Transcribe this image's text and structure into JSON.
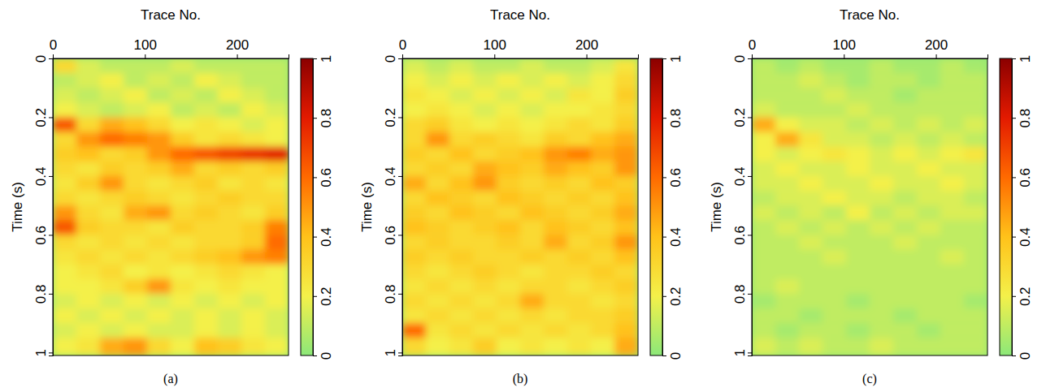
{
  "chart_data": [
    {
      "type": "heatmap",
      "title": "(a)",
      "x_label": "Trace No.",
      "y_label": "Time (s)",
      "x": [
        12.8,
        38.4,
        64,
        89.6,
        115.2,
        140.8,
        166.4,
        192,
        217.6,
        243.2
      ],
      "y": [
        0.025,
        0.075,
        0.125,
        0.175,
        0.225,
        0.275,
        0.325,
        0.375,
        0.425,
        0.475,
        0.525,
        0.575,
        0.625,
        0.675,
        0.725,
        0.775,
        0.825,
        0.875,
        0.925,
        0.975
      ],
      "z": [
        [
          0.3,
          0.15,
          0.1,
          0.1,
          0.1,
          0.15,
          0.1,
          0.1,
          0.1,
          0.1
        ],
        [
          0.1,
          0.15,
          0.2,
          0.1,
          0.15,
          0.1,
          0.2,
          0.15,
          0.1,
          0.1
        ],
        [
          0.15,
          0.1,
          0.15,
          0.2,
          0.1,
          0.15,
          0.1,
          0.2,
          0.15,
          0.1
        ],
        [
          0.2,
          0.15,
          0.1,
          0.15,
          0.2,
          0.1,
          0.15,
          0.1,
          0.2,
          0.15
        ],
        [
          0.65,
          0.3,
          0.45,
          0.4,
          0.3,
          0.2,
          0.25,
          0.2,
          0.15,
          0.2
        ],
        [
          0.3,
          0.5,
          0.6,
          0.55,
          0.5,
          0.35,
          0.25,
          0.3,
          0.25,
          0.2
        ],
        [
          0.35,
          0.4,
          0.3,
          0.35,
          0.5,
          0.6,
          0.65,
          0.7,
          0.75,
          0.8
        ],
        [
          0.3,
          0.25,
          0.35,
          0.3,
          0.35,
          0.45,
          0.3,
          0.35,
          0.3,
          0.35
        ],
        [
          0.25,
          0.35,
          0.5,
          0.3,
          0.25,
          0.3,
          0.35,
          0.25,
          0.3,
          0.25
        ],
        [
          0.3,
          0.25,
          0.3,
          0.35,
          0.3,
          0.25,
          0.3,
          0.35,
          0.3,
          0.3
        ],
        [
          0.5,
          0.3,
          0.25,
          0.45,
          0.5,
          0.3,
          0.35,
          0.3,
          0.25,
          0.35
        ],
        [
          0.65,
          0.35,
          0.3,
          0.3,
          0.25,
          0.35,
          0.3,
          0.3,
          0.35,
          0.55
        ],
        [
          0.3,
          0.25,
          0.3,
          0.25,
          0.3,
          0.25,
          0.3,
          0.3,
          0.35,
          0.6
        ],
        [
          0.25,
          0.3,
          0.25,
          0.3,
          0.25,
          0.3,
          0.35,
          0.4,
          0.5,
          0.55
        ],
        [
          0.2,
          0.25,
          0.3,
          0.2,
          0.25,
          0.2,
          0.25,
          0.3,
          0.25,
          0.2
        ],
        [
          0.2,
          0.2,
          0.25,
          0.35,
          0.5,
          0.25,
          0.2,
          0.25,
          0.2,
          0.2
        ],
        [
          0.15,
          0.2,
          0.15,
          0.2,
          0.15,
          0.2,
          0.15,
          0.2,
          0.15,
          0.2
        ],
        [
          0.2,
          0.15,
          0.2,
          0.15,
          0.2,
          0.15,
          0.2,
          0.15,
          0.2,
          0.15
        ],
        [
          0.15,
          0.2,
          0.15,
          0.2,
          0.15,
          0.15,
          0.2,
          0.15,
          0.2,
          0.15
        ],
        [
          0.2,
          0.25,
          0.45,
          0.5,
          0.3,
          0.2,
          0.4,
          0.35,
          0.25,
          0.2
        ]
      ],
      "xlim": [
        0,
        256
      ],
      "ylim": [
        0,
        1.01
      ],
      "xticks": [
        0,
        100,
        200
      ],
      "yticks": [
        0,
        0.2,
        0.4,
        0.6,
        0.8,
        1
      ],
      "colorbar_range": [
        0,
        1
      ],
      "colorbar_ticks": [
        0,
        0.2,
        0.4,
        0.6,
        0.8,
        1
      ]
    },
    {
      "type": "heatmap",
      "title": "(b)",
      "x_label": "Trace No.",
      "y_label": "Time (s)",
      "x": [
        12.8,
        38.4,
        64,
        89.6,
        115.2,
        140.8,
        166.4,
        192,
        217.6,
        243.2
      ],
      "y": [
        0.025,
        0.075,
        0.125,
        0.175,
        0.225,
        0.275,
        0.325,
        0.375,
        0.425,
        0.475,
        0.525,
        0.575,
        0.625,
        0.675,
        0.725,
        0.775,
        0.825,
        0.875,
        0.925,
        0.975
      ],
      "z": [
        [
          0.15,
          0.1,
          0.15,
          0.1,
          0.1,
          0.15,
          0.1,
          0.1,
          0.15,
          0.25
        ],
        [
          0.2,
          0.15,
          0.2,
          0.15,
          0.2,
          0.15,
          0.2,
          0.15,
          0.2,
          0.3
        ],
        [
          0.25,
          0.2,
          0.15,
          0.2,
          0.15,
          0.2,
          0.15,
          0.25,
          0.2,
          0.35
        ],
        [
          0.2,
          0.25,
          0.2,
          0.15,
          0.2,
          0.15,
          0.2,
          0.2,
          0.25,
          0.3
        ],
        [
          0.3,
          0.35,
          0.25,
          0.2,
          0.25,
          0.2,
          0.25,
          0.3,
          0.25,
          0.35
        ],
        [
          0.3,
          0.5,
          0.3,
          0.35,
          0.3,
          0.25,
          0.35,
          0.3,
          0.4,
          0.45
        ],
        [
          0.35,
          0.3,
          0.4,
          0.3,
          0.35,
          0.4,
          0.5,
          0.55,
          0.45,
          0.5
        ],
        [
          0.3,
          0.35,
          0.3,
          0.45,
          0.4,
          0.35,
          0.45,
          0.4,
          0.35,
          0.5
        ],
        [
          0.45,
          0.3,
          0.4,
          0.5,
          0.35,
          0.3,
          0.35,
          0.3,
          0.4,
          0.35
        ],
        [
          0.3,
          0.4,
          0.35,
          0.3,
          0.4,
          0.35,
          0.3,
          0.35,
          0.3,
          0.4
        ],
        [
          0.35,
          0.3,
          0.4,
          0.35,
          0.3,
          0.4,
          0.35,
          0.3,
          0.35,
          0.45
        ],
        [
          0.4,
          0.35,
          0.3,
          0.35,
          0.4,
          0.3,
          0.4,
          0.35,
          0.3,
          0.4
        ],
        [
          0.3,
          0.35,
          0.3,
          0.3,
          0.35,
          0.3,
          0.45,
          0.3,
          0.35,
          0.5
        ],
        [
          0.35,
          0.3,
          0.35,
          0.3,
          0.3,
          0.35,
          0.3,
          0.35,
          0.3,
          0.4
        ],
        [
          0.3,
          0.25,
          0.3,
          0.35,
          0.3,
          0.25,
          0.3,
          0.3,
          0.35,
          0.3
        ],
        [
          0.25,
          0.3,
          0.25,
          0.3,
          0.25,
          0.3,
          0.3,
          0.25,
          0.3,
          0.35
        ],
        [
          0.3,
          0.25,
          0.3,
          0.25,
          0.3,
          0.45,
          0.3,
          0.3,
          0.25,
          0.3
        ],
        [
          0.25,
          0.3,
          0.25,
          0.3,
          0.25,
          0.3,
          0.25,
          0.3,
          0.3,
          0.35
        ],
        [
          0.6,
          0.25,
          0.3,
          0.25,
          0.3,
          0.25,
          0.3,
          0.25,
          0.3,
          0.4
        ],
        [
          0.3,
          0.2,
          0.25,
          0.35,
          0.2,
          0.25,
          0.2,
          0.25,
          0.2,
          0.45
        ]
      ],
      "xlim": [
        0,
        256
      ],
      "ylim": [
        0,
        1.01
      ],
      "xticks": [
        0,
        100,
        200
      ],
      "yticks": [
        0,
        0.2,
        0.4,
        0.6,
        0.8,
        1
      ],
      "colorbar_range": [
        0,
        1
      ],
      "colorbar_ticks": [
        0,
        0.2,
        0.4,
        0.6,
        0.8,
        1
      ]
    },
    {
      "type": "heatmap",
      "title": "(c)",
      "x_label": "Trace No.",
      "y_label": "Time (s)",
      "x": [
        12.8,
        38.4,
        64,
        89.6,
        115.2,
        140.8,
        166.4,
        192,
        217.6,
        243.2
      ],
      "y": [
        0.025,
        0.075,
        0.125,
        0.175,
        0.225,
        0.275,
        0.325,
        0.375,
        0.425,
        0.475,
        0.525,
        0.575,
        0.625,
        0.675,
        0.725,
        0.775,
        0.825,
        0.875,
        0.925,
        0.975
      ],
      "z": [
        [
          0.1,
          0.05,
          0.1,
          0.05,
          0.05,
          0.1,
          0.05,
          0.05,
          0.1,
          0.05
        ],
        [
          0.1,
          0.1,
          0.15,
          0.1,
          0.05,
          0.1,
          0.1,
          0.05,
          0.1,
          0.1
        ],
        [
          0.1,
          0.1,
          0.1,
          0.15,
          0.1,
          0.1,
          0.05,
          0.1,
          0.1,
          0.1
        ],
        [
          0.15,
          0.1,
          0.1,
          0.1,
          0.15,
          0.1,
          0.1,
          0.1,
          0.1,
          0.1
        ],
        [
          0.45,
          0.2,
          0.15,
          0.15,
          0.1,
          0.15,
          0.1,
          0.15,
          0.1,
          0.15
        ],
        [
          0.2,
          0.45,
          0.25,
          0.15,
          0.15,
          0.1,
          0.15,
          0.1,
          0.15,
          0.1
        ],
        [
          0.2,
          0.15,
          0.2,
          0.25,
          0.2,
          0.15,
          0.2,
          0.15,
          0.2,
          0.25
        ],
        [
          0.15,
          0.2,
          0.15,
          0.15,
          0.2,
          0.15,
          0.15,
          0.2,
          0.15,
          0.15
        ],
        [
          0.15,
          0.15,
          0.2,
          0.15,
          0.15,
          0.2,
          0.15,
          0.15,
          0.2,
          0.15
        ],
        [
          0.1,
          0.15,
          0.15,
          0.2,
          0.15,
          0.15,
          0.1,
          0.15,
          0.15,
          0.1
        ],
        [
          0.15,
          0.1,
          0.15,
          0.1,
          0.2,
          0.1,
          0.15,
          0.1,
          0.15,
          0.15
        ],
        [
          0.1,
          0.15,
          0.1,
          0.15,
          0.1,
          0.15,
          0.1,
          0.15,
          0.1,
          0.1
        ],
        [
          0.1,
          0.1,
          0.15,
          0.1,
          0.1,
          0.1,
          0.15,
          0.1,
          0.1,
          0.1
        ],
        [
          0.1,
          0.1,
          0.1,
          0.15,
          0.1,
          0.1,
          0.1,
          0.1,
          0.15,
          0.1
        ],
        [
          0.1,
          0.1,
          0.1,
          0.1,
          0.1,
          0.1,
          0.1,
          0.1,
          0.1,
          0.1
        ],
        [
          0.1,
          0.15,
          0.1,
          0.1,
          0.1,
          0.1,
          0.1,
          0.1,
          0.1,
          0.1
        ],
        [
          0.05,
          0.1,
          0.1,
          0.1,
          0.05,
          0.1,
          0.1,
          0.1,
          0.1,
          0.05
        ],
        [
          0.1,
          0.1,
          0.05,
          0.1,
          0.1,
          0.1,
          0.05,
          0.1,
          0.1,
          0.1
        ],
        [
          0.1,
          0.05,
          0.1,
          0.1,
          0.05,
          0.1,
          0.1,
          0.05,
          0.1,
          0.1
        ],
        [
          0.15,
          0.1,
          0.15,
          0.1,
          0.1,
          0.15,
          0.1,
          0.1,
          0.1,
          0.1
        ]
      ],
      "xlim": [
        0,
        256
      ],
      "ylim": [
        0,
        1.01
      ],
      "xticks": [
        0,
        100,
        200
      ],
      "yticks": [
        0,
        0.2,
        0.4,
        0.6,
        0.8,
        1
      ],
      "colorbar_range": [
        0,
        1
      ],
      "colorbar_ticks": [
        0,
        0.2,
        0.4,
        0.6,
        0.8,
        1
      ]
    }
  ]
}
